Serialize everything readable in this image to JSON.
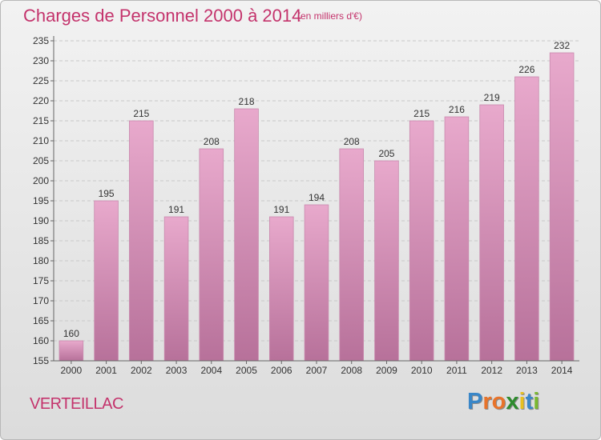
{
  "header": {
    "title": "Charges de Personnel 2000 à 2014",
    "subtitle": "(en milliers d'€)"
  },
  "footer": {
    "place": "VERTEILLAC",
    "logo_letters": [
      "P",
      "r",
      "o",
      "x",
      "i",
      "t",
      "i"
    ]
  },
  "colors": {
    "accent": "#c4336c",
    "bar_light": "#e8a9cc",
    "bar_dark": "#b7719a",
    "logo_letter_colors": [
      "#3a87c8",
      "#e8732a",
      "#e8732a",
      "#2e8b2e",
      "#e8c020",
      "#3a87c8",
      "#7ab830"
    ]
  },
  "chart_data": {
    "type": "bar",
    "categories": [
      "2000",
      "2001",
      "2002",
      "2003",
      "2004",
      "2005",
      "2006",
      "2007",
      "2008",
      "2009",
      "2010",
      "2011",
      "2012",
      "2013",
      "2014"
    ],
    "values": [
      160,
      195,
      215,
      191,
      208,
      218,
      191,
      194,
      208,
      205,
      215,
      216,
      219,
      226,
      232
    ],
    "title": "Charges de Personnel 2000 à 2014",
    "ylim": [
      155,
      235
    ],
    "yticks": [
      155,
      160,
      165,
      170,
      175,
      180,
      185,
      190,
      195,
      200,
      205,
      210,
      215,
      220,
      225,
      230,
      235
    ],
    "grid": "horizontal-dashed",
    "legend": "none"
  }
}
